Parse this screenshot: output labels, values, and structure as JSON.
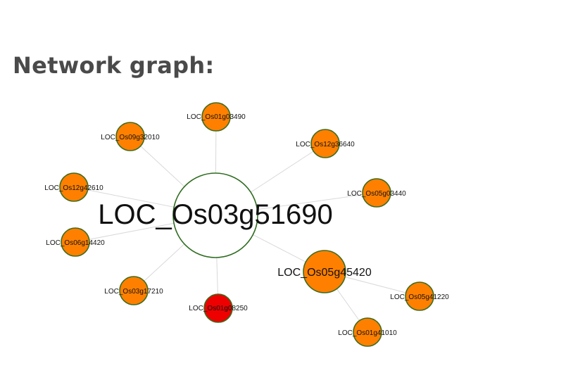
{
  "header": {
    "title": "Network graph:"
  },
  "colors": {
    "edge": "#d9d9d9",
    "node_fill": "#ff8000",
    "node_stroke": "#3d6b1f",
    "highlight_fill": "#ee0000",
    "center_fill": "#ffffff",
    "center_stroke": "#2e6b1f"
  },
  "network": {
    "center": {
      "label": "LOC_Os03g51690"
    },
    "nodes": [
      {
        "id": "n1",
        "label": "LOC_Os01g03490",
        "color": "orange"
      },
      {
        "id": "n2",
        "label": "LOC_Os09g32010",
        "color": "orange"
      },
      {
        "id": "n3",
        "label": "LOC_Os12g36640",
        "color": "orange"
      },
      {
        "id": "n4",
        "label": "LOC_Os12g42610",
        "color": "orange"
      },
      {
        "id": "n5",
        "label": "LOC_Os05g03440",
        "color": "orange"
      },
      {
        "id": "n6",
        "label": "LOC_Os06g14420",
        "color": "orange"
      },
      {
        "id": "n7",
        "label": "LOC_Os05g45420",
        "color": "orange"
      },
      {
        "id": "n8",
        "label": "LOC_Os03g17210",
        "color": "orange"
      },
      {
        "id": "n9",
        "label": "LOC_Os01g08250",
        "color": "red"
      },
      {
        "id": "n10",
        "label": "LOC_Os05g41220",
        "color": "orange"
      },
      {
        "id": "n11",
        "label": "LOC_Os01g41010",
        "color": "orange"
      }
    ],
    "edges": [
      [
        "center",
        "n1"
      ],
      [
        "center",
        "n2"
      ],
      [
        "center",
        "n3"
      ],
      [
        "center",
        "n4"
      ],
      [
        "center",
        "n5"
      ],
      [
        "center",
        "n6"
      ],
      [
        "center",
        "n7"
      ],
      [
        "center",
        "n8"
      ],
      [
        "center",
        "n9"
      ],
      [
        "n7",
        "n10"
      ],
      [
        "n7",
        "n11"
      ]
    ]
  }
}
